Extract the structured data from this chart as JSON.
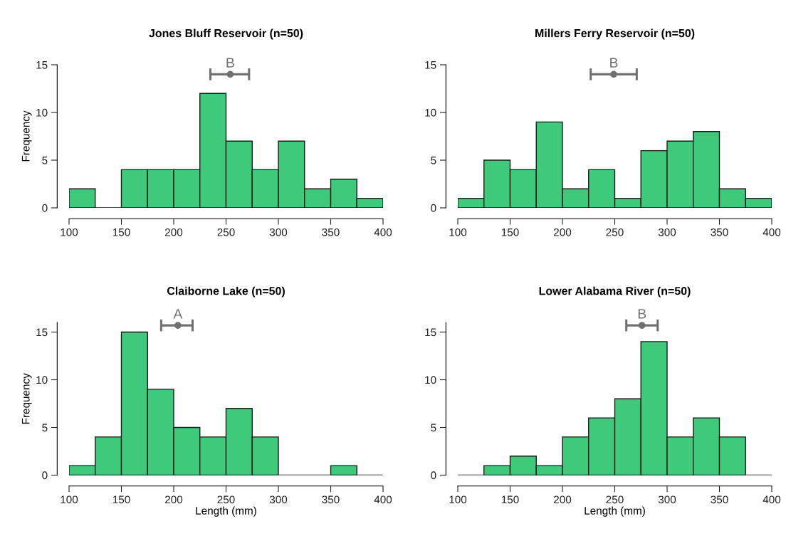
{
  "chart_data": [
    {
      "type": "histogram",
      "title": "Jones Bluff Reservoir (n=50)",
      "ylabel": "Frequency",
      "color": "#3fc97a",
      "bins": [
        100,
        125,
        150,
        175,
        200,
        225,
        250,
        275,
        300,
        325,
        350,
        375,
        400
      ],
      "values": [
        2,
        0,
        4,
        4,
        4,
        12,
        7,
        4,
        7,
        2,
        3,
        1
      ],
      "xlim": [
        100,
        400
      ],
      "ylim": [
        0,
        15
      ],
      "xticks": [
        100,
        150,
        200,
        250,
        300,
        350,
        400
      ],
      "yticks": [
        0,
        5,
        10,
        15
      ],
      "grid": false,
      "legend": false,
      "series": [
        {
          "type": "scatter",
          "color": "#707070",
          "x": [
            254
          ],
          "values": [
            14
          ],
          "xerrors": [
            [
              235,
              272
            ]
          ],
          "marker": "circle"
        }
      ],
      "annotations": [
        {
          "text": "B",
          "x": 254,
          "y": 14
        }
      ]
    },
    {
      "type": "histogram",
      "title": "Millers Ferry Reservoir (n=50)",
      "color": "#3fc97a",
      "bins": [
        100,
        125,
        150,
        175,
        200,
        225,
        250,
        275,
        300,
        325,
        350,
        375,
        400
      ],
      "values": [
        1,
        5,
        4,
        9,
        2,
        4,
        1,
        6,
        7,
        8,
        2,
        1
      ],
      "xlim": [
        100,
        400
      ],
      "ylim": [
        0,
        15
      ],
      "xticks": [
        100,
        150,
        200,
        250,
        300,
        350,
        400
      ],
      "yticks": [
        0,
        5,
        10,
        15
      ],
      "grid": false,
      "legend": false,
      "series": [
        {
          "type": "scatter",
          "color": "#707070",
          "x": [
            249
          ],
          "values": [
            14
          ],
          "xerrors": [
            [
              227,
              271
            ]
          ],
          "marker": "circle"
        }
      ],
      "annotations": [
        {
          "text": "B",
          "x": 249,
          "y": 14
        }
      ]
    },
    {
      "type": "histogram",
      "title": "Claiborne Lake (n=50)",
      "xlabel": "Length (mm)",
      "ylabel": "Frequency",
      "color": "#3fc97a",
      "bins": [
        100,
        125,
        150,
        175,
        200,
        225,
        250,
        275,
        300,
        325,
        350,
        375,
        400
      ],
      "values": [
        1,
        4,
        15,
        9,
        5,
        4,
        7,
        4,
        0,
        0,
        1,
        0
      ],
      "xlim": [
        100,
        400
      ],
      "ylim": [
        0,
        16
      ],
      "xticks": [
        100,
        150,
        200,
        250,
        300,
        350,
        400
      ],
      "yticks": [
        0,
        5,
        10,
        15
      ],
      "grid": false,
      "legend": false,
      "series": [
        {
          "type": "scatter",
          "color": "#707070",
          "x": [
            204
          ],
          "values": [
            15.7
          ],
          "xerrors": [
            [
              188,
              218
            ]
          ],
          "marker": "circle"
        }
      ],
      "annotations": [
        {
          "text": "A",
          "x": 204,
          "y": 15.7
        }
      ]
    },
    {
      "type": "histogram",
      "title": "Lower Alabama River (n=50)",
      "xlabel": "Length (mm)",
      "color": "#3fc97a",
      "bins": [
        100,
        125,
        150,
        175,
        200,
        225,
        250,
        275,
        300,
        325,
        350,
        375,
        400
      ],
      "values": [
        0,
        1,
        2,
        1,
        4,
        6,
        8,
        14,
        4,
        6,
        4,
        0
      ],
      "xlim": [
        100,
        400
      ],
      "ylim": [
        0,
        16
      ],
      "xticks": [
        100,
        150,
        200,
        250,
        300,
        350,
        400
      ],
      "yticks": [
        0,
        5,
        10,
        15
      ],
      "grid": false,
      "legend": false,
      "series": [
        {
          "type": "scatter",
          "color": "#707070",
          "x": [
            276
          ],
          "values": [
            15.7
          ],
          "xerrors": [
            [
              261,
              291
            ]
          ],
          "marker": "circle"
        }
      ],
      "annotations": [
        {
          "text": "B",
          "x": 276,
          "y": 15.7
        }
      ]
    }
  ]
}
